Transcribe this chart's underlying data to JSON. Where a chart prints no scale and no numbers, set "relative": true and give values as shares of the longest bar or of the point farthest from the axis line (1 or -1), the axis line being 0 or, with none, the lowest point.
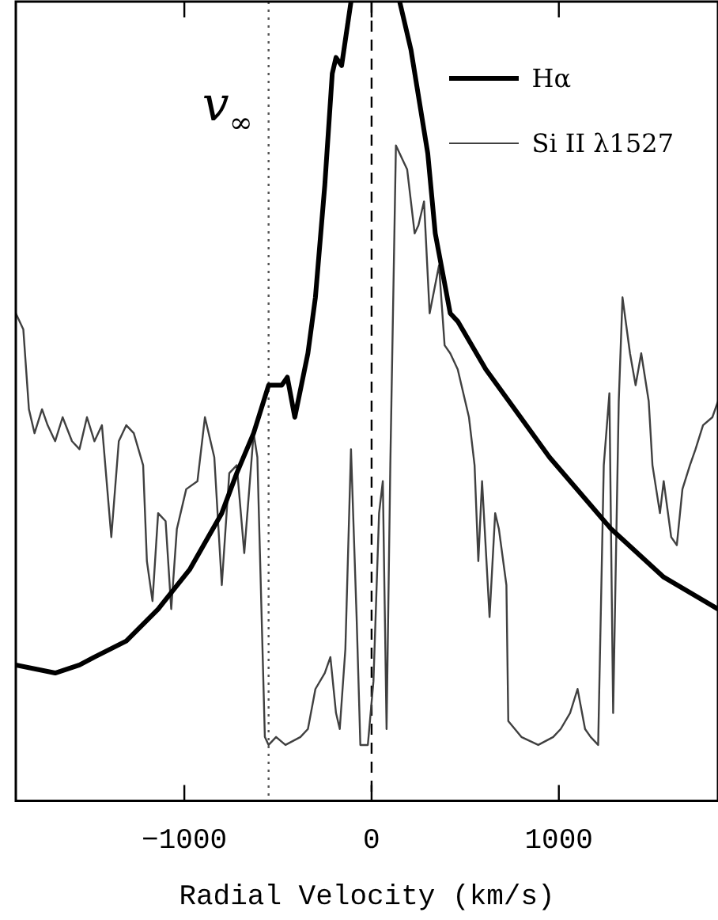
{
  "chart_data": {
    "type": "line",
    "relative": true,
    "xlabel": "Radial Velocity (km/s)",
    "xlim": [
      -1900,
      1850
    ],
    "xticks": [
      -1000,
      0,
      1000
    ],
    "legend": "top right",
    "grid": false,
    "marker": "none",
    "ref_lines": [
      {
        "axis": "x",
        "value": -550,
        "label": "v$_{∞}$",
        "line_style": "dotted",
        "color": "#555555"
      },
      {
        "axis": "x",
        "value": 0,
        "line_style": "dashed",
        "color": "#000000"
      }
    ],
    "series": [
      {
        "name": "Hα",
        "color": "#000000",
        "x": [
          -1900,
          -1690,
          -1560,
          -1480,
          -1310,
          -1140,
          -970,
          -800,
          -720,
          -630,
          -550,
          -480,
          -450,
          -410,
          -340,
          -300,
          -250,
          -210,
          -190,
          -160,
          -110,
          20,
          150,
          210,
          300,
          340,
          420,
          460,
          610,
          950,
          1280,
          1560,
          1850
        ],
        "values": [
          0.17,
          0.16,
          0.17,
          0.18,
          0.2,
          0.24,
          0.29,
          0.36,
          0.41,
          0.46,
          0.52,
          0.52,
          0.53,
          0.48,
          0.56,
          0.63,
          0.77,
          0.91,
          0.93,
          0.92,
          1.0,
          null,
          1.0,
          0.94,
          0.81,
          0.71,
          0.61,
          0.6,
          0.54,
          0.43,
          0.34,
          0.28,
          0.24
        ]
      },
      {
        "name": "Si II λ1527",
        "color": "#404040",
        "x": [
          -1900,
          -1860,
          -1830,
          -1800,
          -1760,
          -1730,
          -1690,
          -1650,
          -1600,
          -1560,
          -1520,
          -1480,
          -1440,
          -1390,
          -1350,
          -1310,
          -1270,
          -1220,
          -1200,
          -1170,
          -1140,
          -1100,
          -1070,
          -1040,
          -990,
          -930,
          -890,
          -840,
          -800,
          -760,
          -720,
          -680,
          -630,
          -610,
          -570,
          -550,
          -510,
          -460,
          -380,
          -340,
          -300,
          -250,
          -220,
          -190,
          -170,
          -140,
          -110,
          -80,
          -60,
          -20,
          10,
          40,
          60,
          80,
          100,
          130,
          170,
          190,
          230,
          250,
          280,
          310,
          360,
          390,
          420,
          460,
          520,
          550,
          570,
          590,
          630,
          660,
          680,
          720,
          730,
          800,
          890,
          970,
          1010,
          1060,
          1100,
          1140,
          1170,
          1210,
          1240,
          1270,
          1290,
          1320,
          1340,
          1380,
          1410,
          1440,
          1480,
          1500,
          1540,
          1560,
          1600,
          1630,
          1660,
          1700,
          1730,
          1770,
          1820,
          1850
        ],
        "values": [
          0.61,
          0.59,
          0.49,
          0.46,
          0.49,
          0.47,
          0.45,
          0.48,
          0.45,
          0.44,
          0.48,
          0.45,
          0.47,
          0.33,
          0.45,
          0.47,
          0.46,
          0.42,
          0.3,
          0.25,
          0.36,
          0.35,
          0.24,
          0.34,
          0.39,
          0.4,
          0.48,
          0.43,
          0.27,
          0.41,
          0.42,
          0.31,
          0.46,
          0.43,
          0.08,
          0.07,
          0.08,
          0.07,
          0.08,
          0.09,
          0.14,
          0.16,
          0.18,
          0.11,
          0.09,
          0.19,
          0.44,
          0.23,
          0.07,
          0.07,
          0.15,
          0.36,
          0.4,
          0.09,
          0.42,
          0.82,
          0.8,
          0.79,
          0.71,
          0.72,
          0.75,
          0.61,
          0.67,
          0.57,
          0.56,
          0.54,
          0.48,
          0.42,
          0.3,
          0.4,
          0.23,
          0.36,
          0.34,
          0.27,
          0.1,
          0.08,
          0.07,
          0.08,
          0.09,
          0.11,
          0.14,
          0.09,
          0.08,
          0.07,
          0.42,
          0.51,
          0.11,
          0.5,
          0.63,
          0.56,
          0.52,
          0.56,
          0.5,
          0.42,
          0.36,
          0.4,
          0.33,
          0.32,
          0.39,
          0.42,
          0.44,
          0.47,
          0.48,
          0.5
        ]
      }
    ]
  }
}
